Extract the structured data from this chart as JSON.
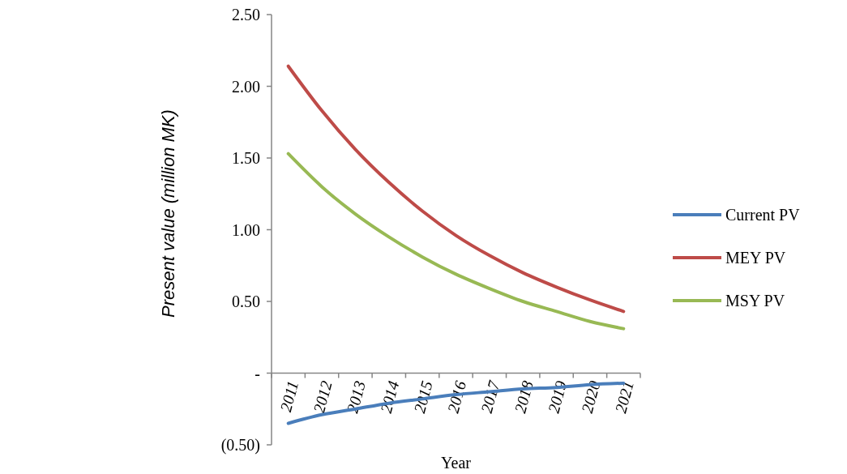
{
  "chart_data": {
    "type": "line",
    "xlabel": "Year",
    "ylabel": "Present value (million MK)",
    "categories": [
      "2011",
      "2012",
      "2013",
      "2014",
      "2015",
      "2016",
      "2017",
      "2018",
      "2019",
      "2020",
      "2021"
    ],
    "series": [
      {
        "name": "Current PV",
        "color": "#4a7ebb",
        "values": [
          -0.35,
          -0.29,
          -0.25,
          -0.21,
          -0.18,
          -0.15,
          -0.13,
          -0.11,
          -0.1,
          -0.08,
          -0.07
        ]
      },
      {
        "name": "MEY PV",
        "color": "#be4b48",
        "values": [
          2.14,
          1.83,
          1.56,
          1.33,
          1.13,
          0.96,
          0.82,
          0.7,
          0.6,
          0.51,
          0.43
        ]
      },
      {
        "name": "MSY PV",
        "color": "#98b954",
        "values": [
          1.53,
          1.3,
          1.11,
          0.95,
          0.81,
          0.69,
          0.59,
          0.5,
          0.43,
          0.36,
          0.31
        ]
      }
    ],
    "ylim": [
      -0.5,
      2.5
    ],
    "yticks": [
      {
        "value": -0.5,
        "label": "(0.50)"
      },
      {
        "value": 0,
        "label": "-"
      },
      {
        "value": 0.5,
        "label": "0.50"
      },
      {
        "value": 1,
        "label": "1.00"
      },
      {
        "value": 1.5,
        "label": "1.50"
      },
      {
        "value": 2,
        "label": "2.00"
      },
      {
        "value": 2.5,
        "label": "2.50"
      }
    ],
    "legend": "right",
    "grid": false,
    "line_style": "solid"
  }
}
